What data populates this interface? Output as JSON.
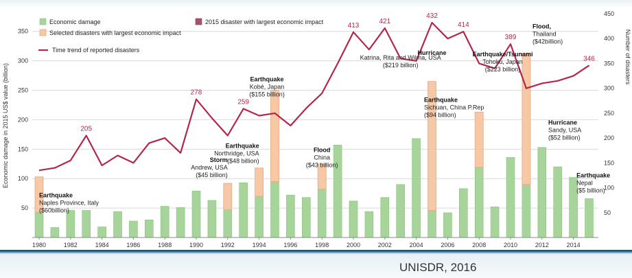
{
  "colors": {
    "green": "#a6d49b",
    "green_edge": "#8cc27f",
    "orange": "#f6c8a6",
    "orange_edge": "#e8a77c",
    "line": "#b3264a",
    "grid": "#d9d9d9"
  },
  "footer": {
    "source": "UNISDR, 2016"
  },
  "chart_data": {
    "type": "bar",
    "title": "",
    "xlabel": "",
    "ylabel": "Economic damage in 2015 US$ value (billion)",
    "y2label": "Number of disasters",
    "ylim": [
      0,
      380
    ],
    "y2lim": [
      0,
      450
    ],
    "grid": true,
    "legend_position": "top-left",
    "legend": [
      {
        "key": "green",
        "label": "Economic damage"
      },
      {
        "key": "orange",
        "label": "Selected disasters with largest economic impact"
      },
      {
        "key": "purple",
        "label": "2015 disaster with largest economic impact"
      },
      {
        "key": "line",
        "label": "Time trend of reported disasters"
      }
    ],
    "yticks": [
      "50",
      "100",
      "150",
      "200",
      "250",
      "300",
      "350"
    ],
    "y2ticks": [
      "50",
      "100",
      "150",
      "200",
      "250",
      "300",
      "350",
      "400",
      "450"
    ],
    "x_tick_labels": [
      "1980",
      "1982",
      "1984",
      "1986",
      "1988",
      "1990",
      "1992",
      "1994",
      "1996",
      "1998",
      "2000",
      "2002",
      "2004",
      "2006",
      "2008",
      "2010",
      "2012",
      "2014"
    ],
    "years": [
      1980,
      1981,
      1982,
      1983,
      1984,
      1985,
      1986,
      1987,
      1988,
      1989,
      1990,
      1991,
      1992,
      1993,
      1994,
      1995,
      1996,
      1997,
      1998,
      1999,
      2000,
      2001,
      2002,
      2003,
      2004,
      2005,
      2006,
      2007,
      2008,
      2009,
      2010,
      2011,
      2012,
      2013,
      2014,
      2015
    ],
    "economic_damage": [
      43,
      17,
      46,
      46,
      18,
      44,
      28,
      30,
      53,
      51,
      79,
      63,
      47,
      93,
      70,
      95,
      72,
      68,
      82,
      157,
      62,
      44,
      68,
      90,
      168,
      46,
      42,
      83,
      119,
      52,
      136,
      90,
      153,
      120,
      102,
      66
    ],
    "selected_highlight": [
      60,
      0,
      0,
      0,
      0,
      0,
      0,
      0,
      0,
      0,
      0,
      0,
      45,
      0,
      48,
      155,
      0,
      0,
      43,
      0,
      0,
      0,
      0,
      0,
      0,
      219,
      0,
      0,
      94,
      0,
      0,
      223,
      0,
      0,
      0,
      0
    ],
    "disasters": [
      135,
      140,
      155,
      205,
      145,
      165,
      150,
      190,
      200,
      170,
      278,
      240,
      205,
      259,
      245,
      250,
      225,
      260,
      290,
      350,
      413,
      378,
      421,
      360,
      355,
      432,
      400,
      414,
      350,
      340,
      389,
      300,
      310,
      315,
      325,
      346
    ],
    "peak_labels": [
      {
        "year": 1983,
        "text": "205"
      },
      {
        "year": 1990,
        "text": "278"
      },
      {
        "year": 1993,
        "text": "259"
      },
      {
        "year": 2000,
        "text": "413"
      },
      {
        "year": 2002,
        "text": "421"
      },
      {
        "year": 2005,
        "text": "432"
      },
      {
        "year": 2007,
        "text": "414"
      },
      {
        "year": 2010,
        "text": "389"
      },
      {
        "year": 2015,
        "text": "346"
      }
    ],
    "annotations": [
      {
        "type": "Earthquake",
        "lines": [
          "Naples Province, Italy",
          "($60billion)"
        ],
        "anchor": [
          1980,
          68
        ],
        "align": "start"
      },
      {
        "type": "Storm",
        "lines": [
          "Andrew, USA",
          "($45 billion)"
        ],
        "anchor": [
          1992,
          128
        ],
        "align": "end"
      },
      {
        "type": "Earthquake",
        "lines": [
          "Northridge, USA",
          "($48 billion)"
        ],
        "anchor": [
          1994,
          152
        ],
        "align": "end"
      },
      {
        "type": "Earthquake",
        "lines": [
          "Kobé, Japan",
          "($155 billion)"
        ],
        "anchor": [
          1994.5,
          265
        ],
        "align": "middle"
      },
      {
        "type": "Flood",
        "lines": [
          "China",
          "($43 billion)"
        ],
        "anchor": [
          1998,
          145
        ],
        "align": "middle"
      },
      {
        "type": "",
        "lines": [
          "Katrina, Rita and Wilma, USA",
          "($219 billion)"
        ],
        "anchor": [
          2003,
          302
        ],
        "align": "middle"
      },
      {
        "type": "Hurricane",
        "lines": [],
        "anchor": [
          2005,
          310
        ],
        "align": "middle"
      },
      {
        "type": "Earthquake",
        "lines": [
          "Sichuan, China P.Rep",
          "($94 billion)"
        ],
        "anchor": [
          2004.5,
          230
        ],
        "align": "start"
      },
      {
        "type": "Earthquake/Tsunami",
        "lines": [
          "Tohoku, Japan",
          "($223 billion)"
        ],
        "anchor": [
          2009.5,
          308
        ],
        "align": "middle"
      },
      {
        "type": "Flood,",
        "lines": [
          "Thailand",
          "($42billion)"
        ],
        "anchor": [
          2011.4,
          355
        ],
        "align": "start"
      },
      {
        "type": "Hurricane",
        "lines": [
          "Sandy, USA",
          "($52 billion)"
        ],
        "anchor": [
          2012.4,
          192
        ],
        "align": "start"
      },
      {
        "type": "Earthquake",
        "lines": [
          "Nepal",
          "($5 billion)"
        ],
        "anchor": [
          2014.2,
          102
        ],
        "align": "start"
      }
    ]
  }
}
